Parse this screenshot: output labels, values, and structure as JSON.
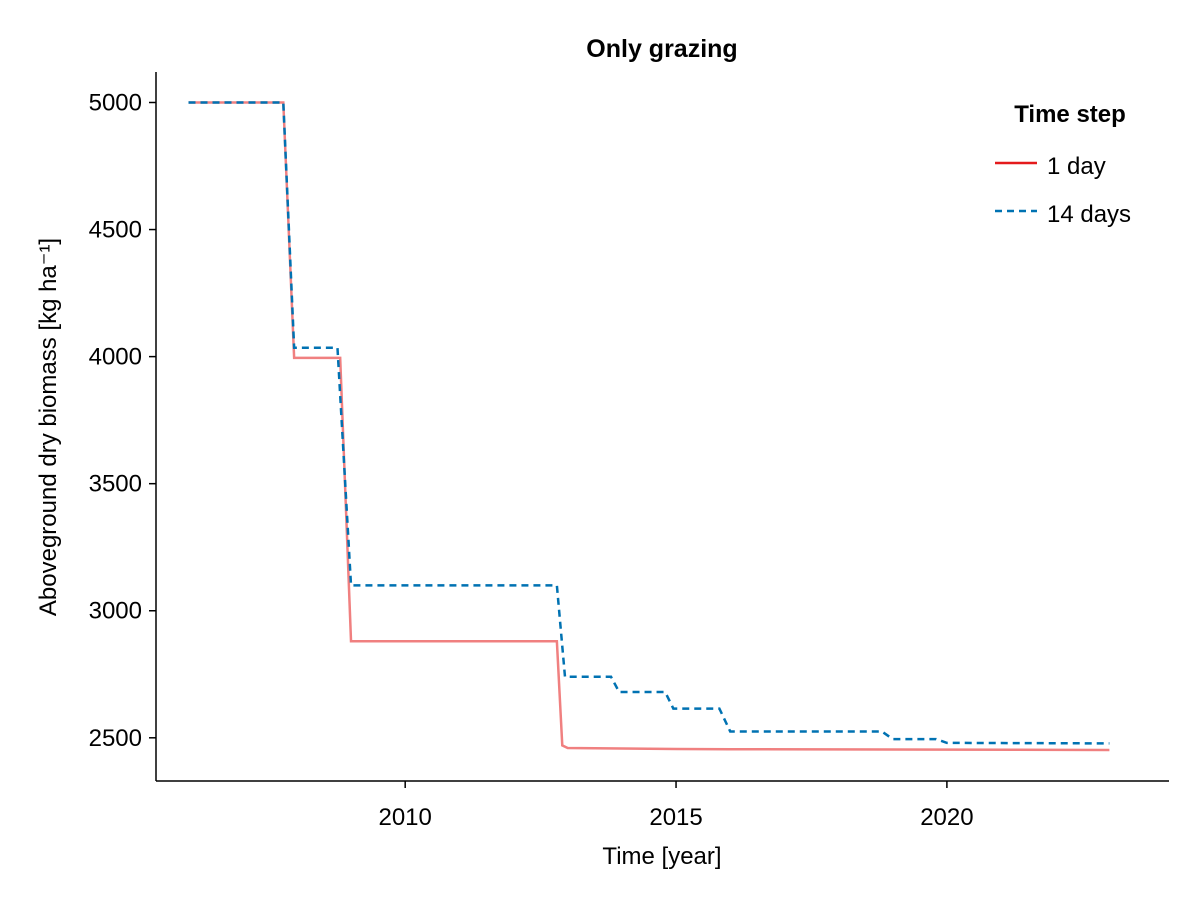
{
  "chart_data": {
    "type": "line",
    "title": "Only grazing",
    "xlabel": "Time [year]",
    "ylabel": "Aboveground dry biomass [kg ha⁻¹]",
    "xlim": [
      2005.4,
      2024.1
    ],
    "ylim": [
      2330,
      5120
    ],
    "xticks": [
      2010,
      2015,
      2020
    ],
    "yticks": [
      2500,
      3000,
      3500,
      4000,
      4500,
      5000
    ],
    "grid": false,
    "legend": {
      "title": "Time step",
      "placement": "top-right"
    },
    "series": [
      {
        "name": "1 day",
        "color": "#e41a1c",
        "line_color": "#f08080",
        "dash": "solid",
        "x": [
          2006.0,
          2007.75,
          2007.95,
          2008.8,
          2009.0,
          2012.8,
          2012.9,
          2013.0,
          2014.0,
          2015.0,
          2016.0,
          2023.0
        ],
        "y": [
          5000,
          5000,
          3995,
          3995,
          2880,
          2880,
          2470,
          2460,
          2458,
          2456,
          2455,
          2452
        ]
      },
      {
        "name": "14 days",
        "color": "#0072b2",
        "line_color": "#0072b2",
        "dash": "dashed",
        "x": [
          2006.0,
          2007.75,
          2007.95,
          2008.75,
          2009.0,
          2012.8,
          2012.95,
          2013.8,
          2013.95,
          2014.8,
          2014.95,
          2015.8,
          2016.0,
          2018.8,
          2019.0,
          2019.8,
          2020.0,
          2023.0
        ],
        "y": [
          5000,
          5000,
          4035,
          4035,
          3100,
          3100,
          2740,
          2740,
          2680,
          2680,
          2615,
          2615,
          2525,
          2525,
          2495,
          2495,
          2480,
          2478
        ]
      }
    ]
  }
}
